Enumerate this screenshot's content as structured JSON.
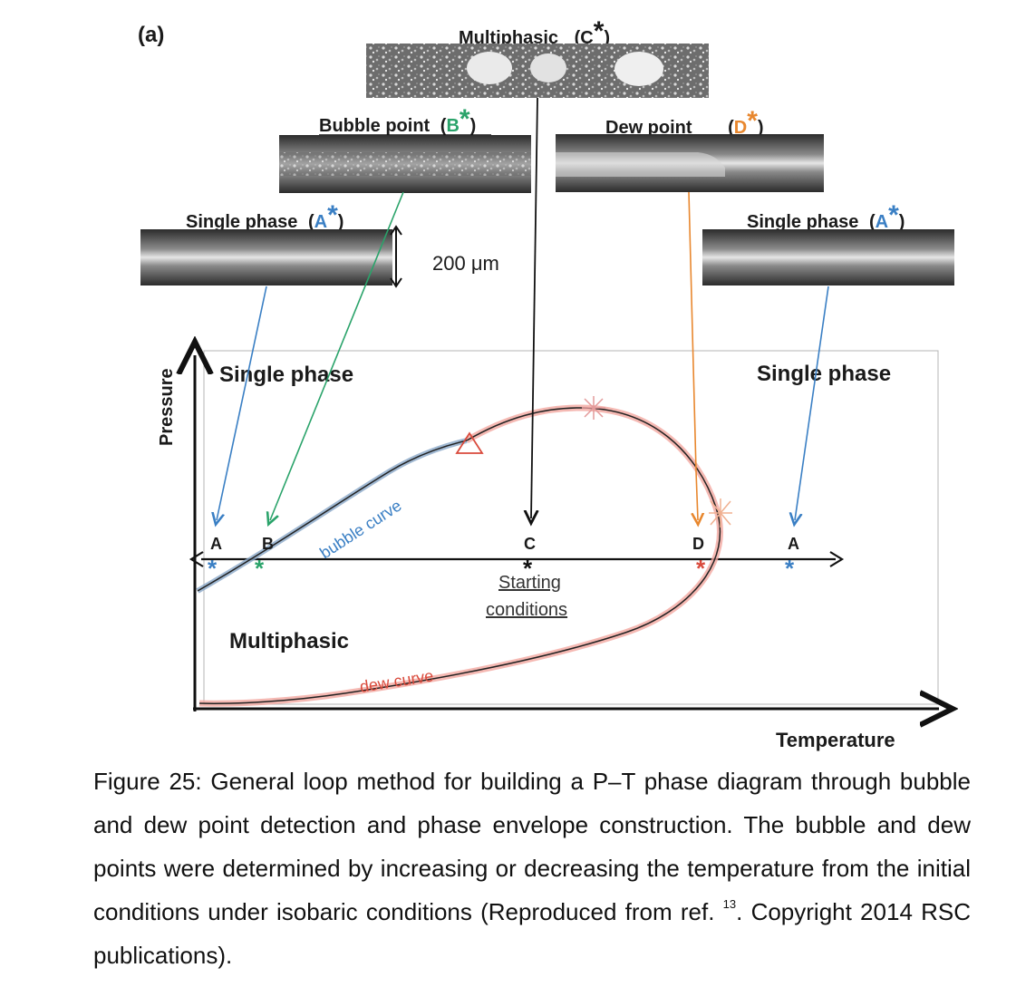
{
  "figure": {
    "panel_label": "(a)",
    "images": {
      "multiphasic": {
        "label": "Multiphasic",
        "marker": "C",
        "star": "*"
      },
      "bubble_point": {
        "label": "Bubble point",
        "marker": "B",
        "star": "*"
      },
      "dew_point": {
        "label": "Dew point",
        "marker": "D",
        "star": "*"
      },
      "single_phase_left": {
        "label": "Single phase",
        "marker": "A",
        "star": "*"
      },
      "single_phase_right": {
        "label": "Single phase",
        "marker": "A",
        "star": "*"
      },
      "scale_label": "200 μm"
    },
    "plot": {
      "y_axis_label": "Pressure",
      "x_axis_label": "Temperature",
      "region_single_left": "Single phase",
      "region_single_right": "Single phase",
      "region_multiphasic": "Multiphasic",
      "bubble_curve_label": "bubble curve",
      "dew_curve_label": "dew curve",
      "starting_conditions": [
        "Starting",
        "conditions"
      ],
      "point_labels": [
        "A",
        "B",
        "C",
        "D",
        "A"
      ]
    },
    "colors": {
      "blue": "#3a7fc4",
      "green": "#2aa36a",
      "orange": "#e8872e",
      "red": "#d94a3c",
      "black": "#111111"
    }
  },
  "caption": {
    "text_before": "Figure 25: General loop method for building a P–T phase diagram through bubble and dew point detection and phase envelope construction. The bubble and dew points were determined by increasing or decreasing the temperature from the initial conditions under isobaric conditions (Reproduced from ref. ",
    "ref": "13",
    "text_after": ". Copyright 2014 RSC publications)."
  }
}
